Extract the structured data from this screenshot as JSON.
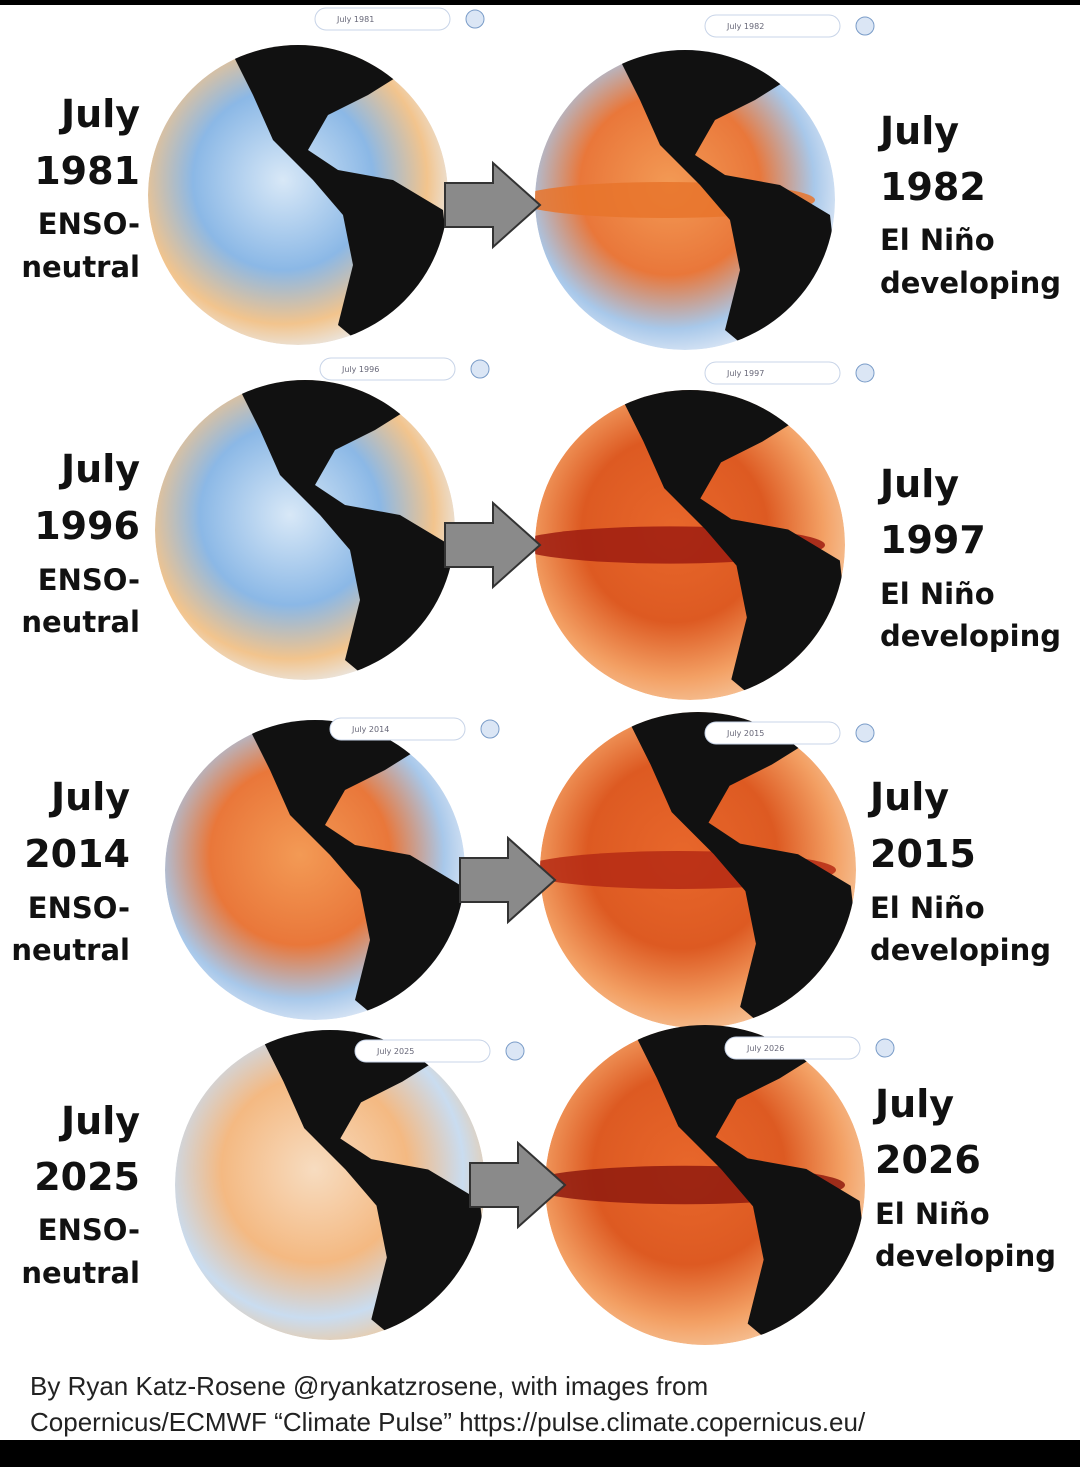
{
  "rows": [
    {
      "left": {
        "date_pill": "July 1981",
        "month": "July",
        "year": "1981",
        "state_line1": "ENSO-",
        "state_line2": "neutral"
      },
      "right": {
        "date_pill": "July 1982",
        "month": "July",
        "year": "1982",
        "state_line1": "El Niño",
        "state_line2": "developing"
      }
    },
    {
      "left": {
        "date_pill": "July 1996",
        "month": "July",
        "year": "1996",
        "state_line1": "ENSO-",
        "state_line2": "neutral"
      },
      "right": {
        "date_pill": "July 1997",
        "month": "July",
        "year": "1997",
        "state_line1": "El Niño",
        "state_line2": "developing"
      }
    },
    {
      "left": {
        "date_pill": "July 2014",
        "month": "July",
        "year": "2014",
        "state_line1": "ENSO-",
        "state_line2": "neutral"
      },
      "right": {
        "date_pill": "July 2015",
        "month": "July",
        "year": "2015",
        "state_line1": "El Niño",
        "state_line2": "developing"
      }
    },
    {
      "left": {
        "date_pill": "July 2025",
        "month": "July",
        "year": "2025",
        "state_line1": "ENSO-",
        "state_line2": "neutral"
      },
      "right": {
        "date_pill": "July 2026",
        "month": "July",
        "year": "2026",
        "state_line1": "El Niño",
        "state_line2": "developing"
      }
    }
  ],
  "credit": {
    "line1": "By Ryan Katz-Rosene @ryankatzrosene, with images from",
    "line2": "Copernicus/ECMWF “Climate Pulse” https://pulse.climate.copernicus.eu/"
  }
}
